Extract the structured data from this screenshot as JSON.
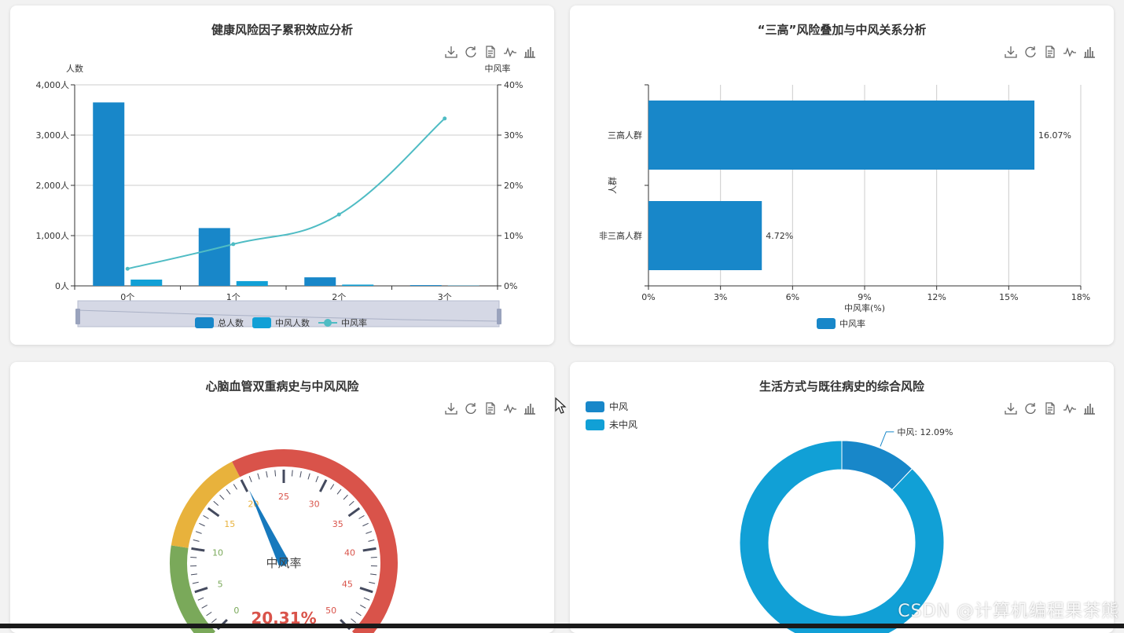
{
  "colors": {
    "blue": "#1887c9",
    "light_blue": "#11a0d6",
    "line": "#4fbcc4",
    "gauge_green": "#7aa95a",
    "gauge_yellow": "#e8b23c",
    "gauge_red": "#d9534a",
    "dataZoom": "#d0d4e2"
  },
  "toolbox_icons": [
    "download-icon",
    "refresh-icon",
    "data-view-icon",
    "line-chart-icon",
    "bar-chart-icon"
  ],
  "chart_data": [
    {
      "type": "bar",
      "title": "健康风险因子累积效应分析",
      "categories": [
        "0个",
        "1个",
        "2个",
        "3个"
      ],
      "y_left_label": "人数",
      "y_right_label": "中风率",
      "y_left_ticks": [
        "0人",
        "1,000人",
        "2,000人",
        "3,000人",
        "4,000人"
      ],
      "y_right_ticks": [
        "0%",
        "10%",
        "20%",
        "30%",
        "40%"
      ],
      "ylim_left": [
        0,
        4000
      ],
      "ylim_right": [
        0,
        40
      ],
      "series": [
        {
          "name": "总人数",
          "type": "bar",
          "axis": "left",
          "values": [
            3650,
            1150,
            170,
            15
          ]
        },
        {
          "name": "中风人数",
          "type": "bar",
          "axis": "left",
          "values": [
            125,
            95,
            25,
            5
          ]
        },
        {
          "name": "中风率",
          "type": "line",
          "axis": "right",
          "values": [
            3.4,
            8.3,
            14.2,
            33.3
          ]
        }
      ]
    },
    {
      "type": "bar",
      "orientation": "horizontal",
      "title": "“三高”风险叠加与中风关系分析",
      "categories": [
        "三高人群",
        "非三高人群"
      ],
      "ylabel": "人群",
      "xlabel": "中风率(%)",
      "x_ticks": [
        "0%",
        "3%",
        "6%",
        "9%",
        "12%",
        "15%",
        "18%"
      ],
      "xlim": [
        0,
        18
      ],
      "series": [
        {
          "name": "中风率",
          "values": [
            16.07,
            4.72
          ],
          "labels": [
            "16.07%",
            "4.72%"
          ]
        }
      ]
    },
    {
      "type": "gauge",
      "title": "心脑血管双重病史与中风风险",
      "name": "中风率",
      "value": 20.31,
      "value_label": "20.31%",
      "min": 0,
      "max": 50,
      "scale_labels": [
        "0",
        "5",
        "10",
        "15",
        "20",
        "25",
        "30",
        "35",
        "40",
        "45",
        "50"
      ]
    },
    {
      "type": "pie",
      "title": "生活方式与既往病史的综合风险",
      "legend": [
        "中风",
        "未中风"
      ],
      "values": [
        12.09,
        87.91
      ],
      "annotation": "中风: 12.09%"
    }
  ],
  "watermark": "CSDN @计算机编程果茶熊"
}
